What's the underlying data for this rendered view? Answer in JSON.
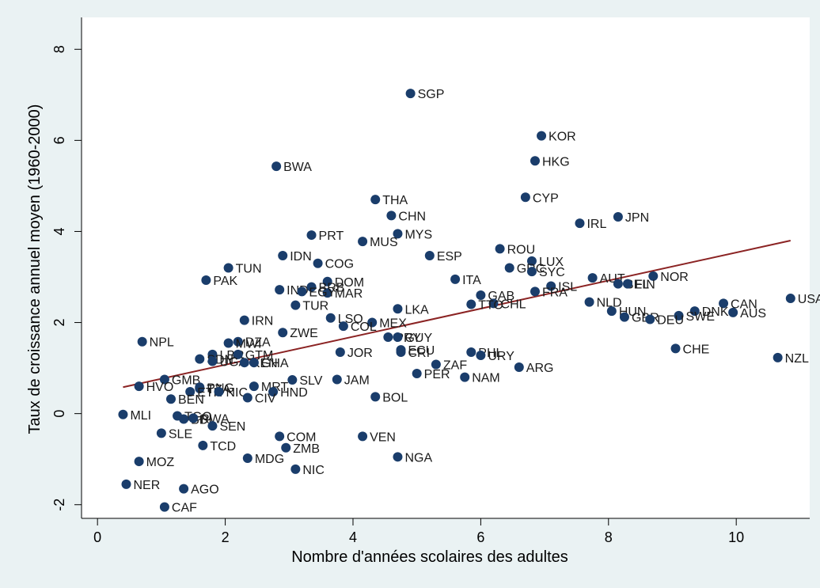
{
  "chart_data": {
    "type": "scatter",
    "xlabel": "Nombre d'années scolaires des adultes",
    "ylabel": "Taux de croissance annuel moyen (1960-2000)",
    "xlim": [
      -0.25,
      11.15
    ],
    "ylim": [
      -2.3,
      8.7
    ],
    "xticks": [
      {
        "v": 0,
        "label": "0"
      },
      {
        "v": 2,
        "label": "2"
      },
      {
        "v": 4,
        "label": "4"
      },
      {
        "v": 6,
        "label": "6"
      },
      {
        "v": 8,
        "label": "8"
      },
      {
        "v": 10,
        "label": "10"
      }
    ],
    "yticks": [
      {
        "v": -2,
        "label": "-2"
      },
      {
        "v": 0,
        "label": "0"
      },
      {
        "v": 2,
        "label": "2"
      },
      {
        "v": 4,
        "label": "4"
      },
      {
        "v": 6,
        "label": "6"
      },
      {
        "v": 8,
        "label": "8"
      }
    ],
    "grid": false,
    "point_color": "#1a3d6b",
    "fit_color": "#8b2323",
    "background_outer": "#eaf2f3",
    "background_plot": "#ffffff",
    "fit_line": {
      "x": [
        0.4,
        10.85
      ],
      "y": [
        0.58,
        3.8
      ]
    },
    "points": [
      {
        "label": "SGP",
        "x": 4.9,
        "y": 7.03
      },
      {
        "label": "KOR",
        "x": 6.95,
        "y": 6.1
      },
      {
        "label": "HKG",
        "x": 6.85,
        "y": 5.55
      },
      {
        "label": "BWA",
        "x": 2.8,
        "y": 5.43
      },
      {
        "label": "CYP",
        "x": 6.7,
        "y": 4.75
      },
      {
        "label": "THA",
        "x": 4.35,
        "y": 4.7
      },
      {
        "label": "CHN",
        "x": 4.6,
        "y": 4.35
      },
      {
        "label": "JPN",
        "x": 8.15,
        "y": 4.32
      },
      {
        "label": "IRL",
        "x": 7.55,
        "y": 4.18
      },
      {
        "label": "MYS",
        "x": 4.7,
        "y": 3.95
      },
      {
        "label": "PRT",
        "x": 3.35,
        "y": 3.92
      },
      {
        "label": "MUS",
        "x": 4.15,
        "y": 3.78
      },
      {
        "label": "ROU",
        "x": 6.3,
        "y": 3.62
      },
      {
        "label": "ESP",
        "x": 5.2,
        "y": 3.47
      },
      {
        "label": "IDN",
        "x": 2.9,
        "y": 3.47
      },
      {
        "label": "LUX",
        "x": 6.8,
        "y": 3.35
      },
      {
        "label": "COG",
        "x": 3.45,
        "y": 3.3
      },
      {
        "label": "TUN",
        "x": 2.05,
        "y": 3.2
      },
      {
        "label": "GRC",
        "x": 6.45,
        "y": 3.2
      },
      {
        "label": "SYC",
        "x": 6.8,
        "y": 3.12
      },
      {
        "label": "AUT",
        "x": 7.75,
        "y": 2.98
      },
      {
        "label": "NOR",
        "x": 8.7,
        "y": 3.02
      },
      {
        "label": "ITA",
        "x": 5.6,
        "y": 2.95
      },
      {
        "label": "PAK",
        "x": 1.7,
        "y": 2.93
      },
      {
        "label": "DOM",
        "x": 3.6,
        "y": 2.9
      },
      {
        "label": "BEL",
        "x": 8.15,
        "y": 2.85
      },
      {
        "label": "FIN",
        "x": 8.3,
        "y": 2.85
      },
      {
        "label": "IND",
        "x": 2.85,
        "y": 2.72
      },
      {
        "label": "ISL",
        "x": 7.1,
        "y": 2.8
      },
      {
        "label": "BRB",
        "x": 3.35,
        "y": 2.78
      },
      {
        "label": "MAR",
        "x": 3.6,
        "y": 2.65
      },
      {
        "label": "EGY",
        "x": 3.2,
        "y": 2.68
      },
      {
        "label": "FRA",
        "x": 6.85,
        "y": 2.68
      },
      {
        "label": "GAB",
        "x": 6.0,
        "y": 2.6
      },
      {
        "label": "NLD",
        "x": 7.7,
        "y": 2.45
      },
      {
        "label": "CAN",
        "x": 9.8,
        "y": 2.42
      },
      {
        "label": "USA",
        "x": 10.85,
        "y": 2.53
      },
      {
        "label": "CHL",
        "x": 6.2,
        "y": 2.42
      },
      {
        "label": "TTO",
        "x": 5.85,
        "y": 2.4
      },
      {
        "label": "TUR",
        "x": 3.1,
        "y": 2.38
      },
      {
        "label": "LKA",
        "x": 4.7,
        "y": 2.3
      },
      {
        "label": "HUN",
        "x": 8.05,
        "y": 2.25
      },
      {
        "label": "DNK",
        "x": 9.35,
        "y": 2.25
      },
      {
        "label": "AUS",
        "x": 9.95,
        "y": 2.22
      },
      {
        "label": "SWE",
        "x": 9.1,
        "y": 2.15
      },
      {
        "label": "GBR",
        "x": 8.25,
        "y": 2.12
      },
      {
        "label": "LSO",
        "x": 3.65,
        "y": 2.1
      },
      {
        "label": "DEU",
        "x": 8.65,
        "y": 2.07
      },
      {
        "label": "IRN",
        "x": 2.3,
        "y": 2.05
      },
      {
        "label": "MEX",
        "x": 4.3,
        "y": 2.0
      },
      {
        "label": "COL",
        "x": 3.85,
        "y": 1.92
      },
      {
        "label": "ZWE",
        "x": 2.9,
        "y": 1.78
      },
      {
        "label": "PRY",
        "x": 4.55,
        "y": 1.68
      },
      {
        "label": "GUY",
        "x": 4.7,
        "y": 1.68
      },
      {
        "label": "NPL",
        "x": 0.7,
        "y": 1.58
      },
      {
        "label": "DZA",
        "x": 2.2,
        "y": 1.58
      },
      {
        "label": "MWI",
        "x": 2.05,
        "y": 1.55
      },
      {
        "label": "CHE",
        "x": 9.05,
        "y": 1.43
      },
      {
        "label": "ECU",
        "x": 4.75,
        "y": 1.4
      },
      {
        "label": "CRI",
        "x": 4.75,
        "y": 1.35
      },
      {
        "label": "JOR",
        "x": 3.8,
        "y": 1.35
      },
      {
        "label": "PHL",
        "x": 5.85,
        "y": 1.35
      },
      {
        "label": "LBR",
        "x": 1.8,
        "y": 1.3
      },
      {
        "label": "GTM",
        "x": 2.2,
        "y": 1.3
      },
      {
        "label": "URY",
        "x": 6.0,
        "y": 1.28
      },
      {
        "label": "NZL",
        "x": 10.65,
        "y": 1.23
      },
      {
        "label": "SDN",
        "x": 1.6,
        "y": 1.2
      },
      {
        "label": "UGA",
        "x": 1.8,
        "y": 1.15
      },
      {
        "label": "KEN",
        "x": 2.3,
        "y": 1.12
      },
      {
        "label": "GHA",
        "x": 2.45,
        "y": 1.12
      },
      {
        "label": "ZAF",
        "x": 5.3,
        "y": 1.08
      },
      {
        "label": "ARG",
        "x": 6.6,
        "y": 1.02
      },
      {
        "label": "PER",
        "x": 5.0,
        "y": 0.88
      },
      {
        "label": "NAM",
        "x": 5.75,
        "y": 0.8
      },
      {
        "label": "GMB",
        "x": 1.05,
        "y": 0.75
      },
      {
        "label": "JAM",
        "x": 3.75,
        "y": 0.75
      },
      {
        "label": "SLV",
        "x": 3.05,
        "y": 0.74
      },
      {
        "label": "HVO",
        "x": 0.65,
        "y": 0.6
      },
      {
        "label": "MRT",
        "x": 2.45,
        "y": 0.6
      },
      {
        "label": "PNG",
        "x": 1.6,
        "y": 0.58
      },
      {
        "label": "TZA",
        "x": 1.6,
        "y": 0.55
      },
      {
        "label": "ETH",
        "x": 1.45,
        "y": 0.48
      },
      {
        "label": "NIC",
        "x": 1.9,
        "y": 0.48
      },
      {
        "label": "HND",
        "x": 2.75,
        "y": 0.48
      },
      {
        "label": "BOL",
        "x": 4.35,
        "y": 0.37
      },
      {
        "label": "CIV",
        "x": 2.35,
        "y": 0.35
      },
      {
        "label": "BEN",
        "x": 1.15,
        "y": 0.32
      },
      {
        "label": "MLI",
        "x": 0.4,
        "y": -0.02
      },
      {
        "label": "TGO",
        "x": 1.25,
        "y": -0.05
      },
      {
        "label": "BDI",
        "x": 1.35,
        "y": -0.12
      },
      {
        "label": "RWA",
        "x": 1.5,
        "y": -0.1
      },
      {
        "label": "SEN",
        "x": 1.8,
        "y": -0.27
      },
      {
        "label": "SLE",
        "x": 1.0,
        "y": -0.43
      },
      {
        "label": "COM",
        "x": 2.85,
        "y": -0.5
      },
      {
        "label": "VEN",
        "x": 4.15,
        "y": -0.5
      },
      {
        "label": "TCD",
        "x": 1.65,
        "y": -0.7
      },
      {
        "label": "ZMB",
        "x": 2.95,
        "y": -0.75
      },
      {
        "label": "NGA",
        "x": 4.7,
        "y": -0.95
      },
      {
        "label": "MDG",
        "x": 2.35,
        "y": -0.98
      },
      {
        "label": "MOZ",
        "x": 0.65,
        "y": -1.05
      },
      {
        "label": "NIC",
        "x": 3.1,
        "y": -1.22
      },
      {
        "label": "NER",
        "x": 0.45,
        "y": -1.55
      },
      {
        "label": "AGO",
        "x": 1.35,
        "y": -1.65
      },
      {
        "label": "CAF",
        "x": 1.05,
        "y": -2.05
      }
    ]
  }
}
